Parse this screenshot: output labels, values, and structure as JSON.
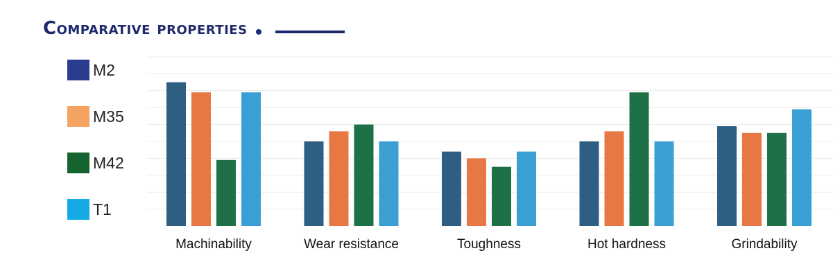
{
  "title": "Comparative properties",
  "chart_data": {
    "type": "bar",
    "title": "Comparative properties",
    "categories": [
      "Machinability",
      "Wear resistance",
      "Toughness",
      "Hot hardness",
      "Grindability"
    ],
    "series": [
      {
        "name": "M2",
        "color": "#2e5f83",
        "values": [
          8.5,
          5.0,
          4.4,
          5.0,
          5.9
        ]
      },
      {
        "name": "M35",
        "color": "#e87843",
        "values": [
          7.9,
          5.6,
          4.0,
          5.6,
          5.5
        ]
      },
      {
        "name": "M42",
        "color": "#1e7046",
        "values": [
          3.9,
          6.0,
          3.5,
          7.9,
          5.5
        ]
      },
      {
        "name": "T1",
        "color": "#3a9fd3",
        "values": [
          7.9,
          5.0,
          4.4,
          5.0,
          6.9
        ]
      }
    ],
    "legend": [
      {
        "label": "M2",
        "color": "#2a3d8f"
      },
      {
        "label": "M35",
        "color": "#f4a460"
      },
      {
        "label": "M42",
        "color": "#15642f"
      },
      {
        "label": "T1",
        "color": "#14aae6"
      }
    ],
    "ylim": [
      0,
      10
    ],
    "grid": true,
    "legend_position": "left",
    "xlabel": "",
    "ylabel": ""
  }
}
